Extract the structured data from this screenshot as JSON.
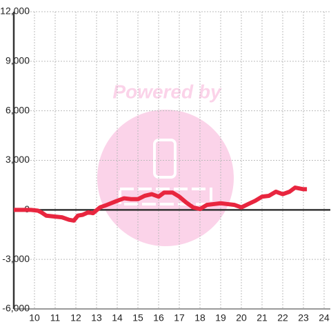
{
  "chart_data": {
    "type": "line",
    "watermark": "Powered by",
    "x": [
      9,
      9.83,
      10.17,
      10.33,
      10.57,
      11.33,
      11.67,
      11.9,
      12.1,
      12.33,
      12.6,
      12.83,
      13.17,
      13.5,
      14,
      14.33,
      14.67,
      15,
      15.33,
      15.67,
      16,
      16.27,
      16.67,
      17,
      17.33,
      17.67,
      18,
      18.33,
      18.67,
      19,
      19.33,
      19.67,
      20,
      20.33,
      20.67,
      21,
      21.33,
      21.67,
      22,
      22.33,
      22.6,
      23,
      23.17
    ],
    "series": [
      {
        "color": "#e8263f",
        "values": [
          0,
          0,
          -50,
          -150,
          -350,
          -450,
          -600,
          -650,
          -350,
          -300,
          -150,
          -200,
          150,
          300,
          550,
          700,
          650,
          650,
          850,
          950,
          800,
          1050,
          1050,
          800,
          450,
          150,
          50,
          300,
          350,
          400,
          350,
          300,
          150,
          350,
          550,
          800,
          850,
          1100,
          950,
          1100,
          1350,
          1250,
          1250
        ]
      }
    ],
    "xlim": [
      9,
      24.3
    ],
    "xticks": [
      10,
      11,
      12,
      13,
      14,
      15,
      16,
      17,
      18,
      19,
      20,
      21,
      22,
      23,
      24
    ],
    "ylim": [
      -6000,
      12000
    ],
    "yticks": [
      {
        "value": -6000,
        "label": "-6,000"
      },
      {
        "value": -3000,
        "label": "-3,000"
      },
      0,
      {
        "value": 3000,
        "label": "3,000"
      },
      {
        "value": 6000,
        "label": "6,000"
      },
      {
        "value": 9000,
        "label": "9,000"
      },
      {
        "value": 12000,
        "label": "12,000"
      }
    ],
    "grid": true
  }
}
